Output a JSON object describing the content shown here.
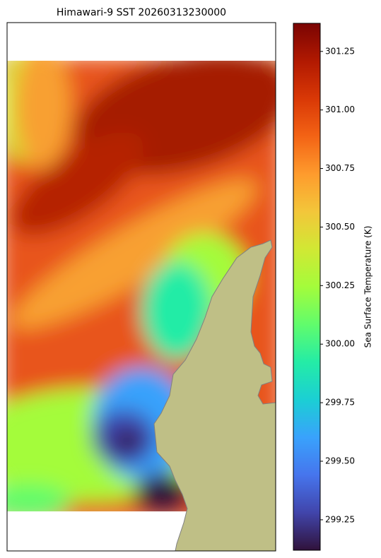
{
  "chart_data": {
    "type": "heatmap",
    "title": "Himawari-9 SST 20260313230000",
    "colorbar": {
      "label": "Sea Surface Temperature (K)",
      "colormap": "turbo",
      "clim": [
        299.12,
        301.37
      ],
      "ticks": [
        299.25,
        {
          "value": 299.5,
          "label": "299.50"
        },
        299.75,
        {
          "value": 300,
          "label": "300.00"
        },
        300.25,
        {
          "value": 300.5,
          "label": "300.50"
        },
        300.75,
        {
          "value": 301,
          "label": "301.00"
        },
        301.25
      ]
    }
  }
}
